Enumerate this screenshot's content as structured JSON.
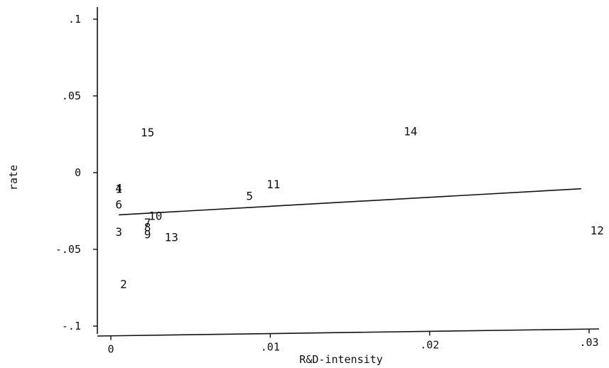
{
  "chart_data": {
    "type": "scatter",
    "title": "",
    "xlabel": "R&D-intensity",
    "ylabel": "rate",
    "xlim": [
      -0.0005,
      0.0305
    ],
    "ylim": [
      -0.108,
      0.108
    ],
    "grid": false,
    "x_ticks": [
      {
        "value": 0,
        "label": "0"
      },
      {
        "value": 0.01,
        "label": ".01"
      },
      {
        "value": 0.02,
        "label": ".02"
      },
      {
        "value": 0.03,
        "label": ".03"
      }
    ],
    "y_ticks": [
      {
        "value": 0.1,
        "label": ".1"
      },
      {
        "value": 0.05,
        "label": ".05"
      },
      {
        "value": 0,
        "label": "0"
      },
      {
        "value": -0.05,
        "label": "-.05"
      },
      {
        "value": -0.1,
        "label": "-.1"
      }
    ],
    "points": [
      {
        "label": "1",
        "x": 0.0005,
        "y": -0.0105
      },
      {
        "label": "4",
        "x": 0.0005,
        "y": -0.01
      },
      {
        "label": "2",
        "x": 0.0008,
        "y": -0.0725
      },
      {
        "label": "3",
        "x": 0.0005,
        "y": -0.0385
      },
      {
        "label": "5",
        "x": 0.0087,
        "y": -0.015
      },
      {
        "label": "6",
        "x": 0.0005,
        "y": -0.0205
      },
      {
        "label": "7",
        "x": 0.0023,
        "y": -0.0325
      },
      {
        "label": "8",
        "x": 0.0023,
        "y": -0.0355
      },
      {
        "label": "9",
        "x": 0.0023,
        "y": -0.04
      },
      {
        "label": "10",
        "x": 0.0028,
        "y": -0.028
      },
      {
        "label": "11",
        "x": 0.0102,
        "y": -0.0075
      },
      {
        "label": "12",
        "x": 0.0305,
        "y": -0.0375
      },
      {
        "label": "13",
        "x": 0.0038,
        "y": -0.042
      },
      {
        "label": "14",
        "x": 0.0188,
        "y": 0.027
      },
      {
        "label": "15",
        "x": 0.0023,
        "y": 0.0265
      }
    ],
    "fit_line": {
      "x": [
        0.0005,
        0.0295
      ],
      "y": [
        -0.0275,
        -0.0105
      ]
    }
  }
}
